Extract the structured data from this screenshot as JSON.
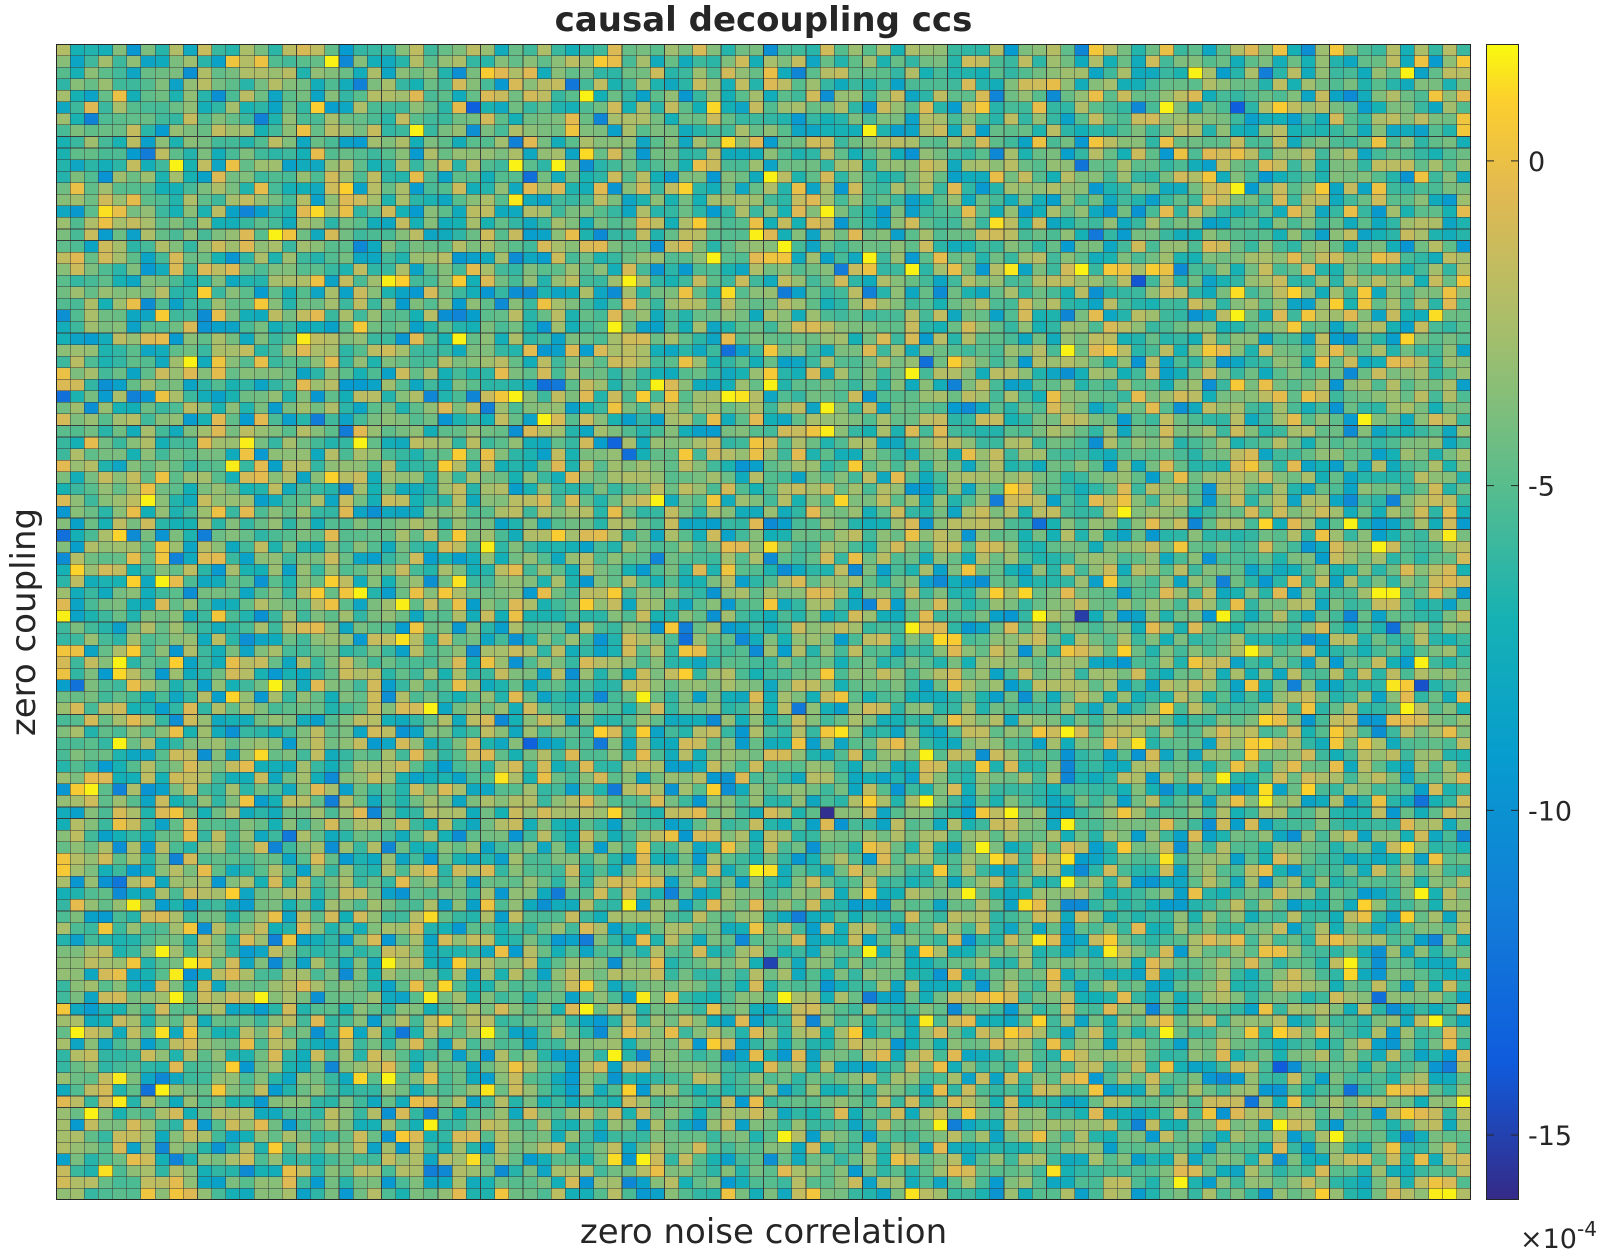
{
  "chart_data": {
    "type": "heatmap",
    "title": "causal decoupling ccs",
    "xlabel": "zero noise correlation",
    "ylabel": "zero coupling",
    "grid_size": {
      "rows": 100,
      "cols": 100
    },
    "value_distribution": {
      "mean": -4.6,
      "std": 2.6
    },
    "outliers": [
      {
        "row": 66,
        "col": 54,
        "value": -15.8
      },
      {
        "row": 49,
        "col": 72,
        "value": -15.2
      },
      {
        "row": 79,
        "col": 50,
        "value": -14.9
      },
      {
        "row": 5,
        "col": 29,
        "value": -13.6
      },
      {
        "row": 5,
        "col": 83,
        "value": -13.7
      },
      {
        "row": 20,
        "col": 76,
        "value": -14.1
      },
      {
        "row": 55,
        "col": 96,
        "value": -14.3
      },
      {
        "row": 34,
        "col": 39,
        "value": -13.2
      },
      {
        "row": 60,
        "col": 33,
        "value": -13.5
      },
      {
        "row": 88,
        "col": 86,
        "value": -13.8
      }
    ],
    "colorbar": {
      "colormap": "parula",
      "clim": [
        -16,
        1.8
      ],
      "ticks": [
        0,
        -5,
        -10,
        -15
      ],
      "tick_labels": [
        "0",
        "-5",
        "-10",
        "-15"
      ],
      "multiplier_base": "×10",
      "multiplier_exponent": "-4"
    },
    "axis_ticks_visible": false
  }
}
